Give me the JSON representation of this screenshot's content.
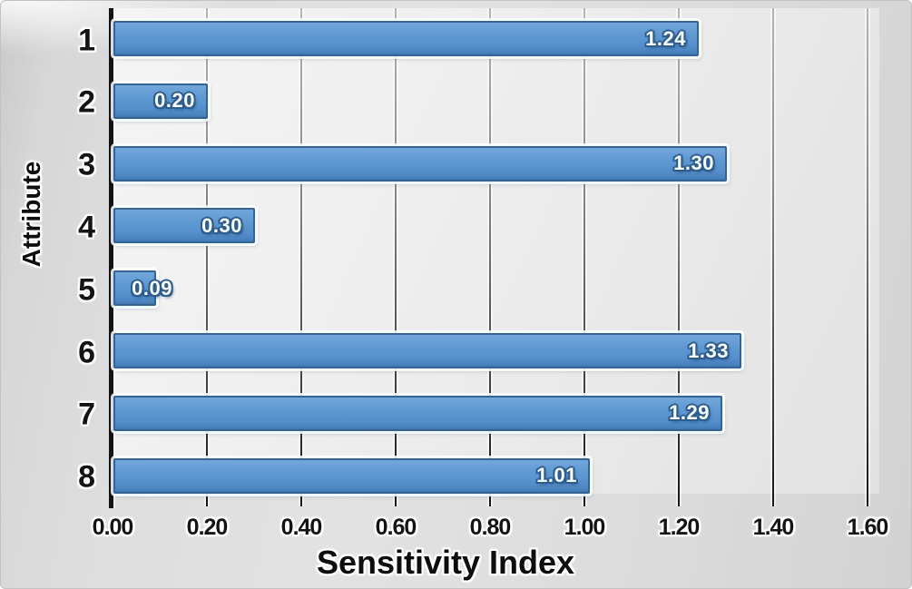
{
  "figure": {
    "kind": "horizontal-bar-chart-figure"
  },
  "chart_data": {
    "type": "bar",
    "orientation": "horizontal",
    "title": "",
    "xlabel": "Sensitivity Index",
    "ylabel": "Attribute",
    "categories": [
      "1",
      "2",
      "3",
      "4",
      "5",
      "6",
      "7",
      "8"
    ],
    "values": [
      1.24,
      0.2,
      1.3,
      0.3,
      0.09,
      1.33,
      1.29,
      1.01
    ],
    "value_labels": [
      "1.24",
      "0.20",
      "1.30",
      "0.30",
      "0.09",
      "1.33",
      "1.29",
      "1.01"
    ],
    "xlim": [
      0.0,
      1.6
    ],
    "x_tick_step": 0.2,
    "x_tick_labels": [
      "0.00",
      "0.20",
      "0.40",
      "0.60",
      "0.80",
      "1.00",
      "1.20",
      "1.40",
      "1.60"
    ],
    "grid": "vertical",
    "legend": "none",
    "colors": {
      "bar_fill": "#5b94ce",
      "bar_border": "#2f659c",
      "bar_value_text": "#ffffff",
      "axis_text": "#141414",
      "gridline_top": "#b4b4b4",
      "gridline_bottom": "#151515",
      "chart_background": "#dcdcdc",
      "plot_background": "#efefef"
    }
  }
}
